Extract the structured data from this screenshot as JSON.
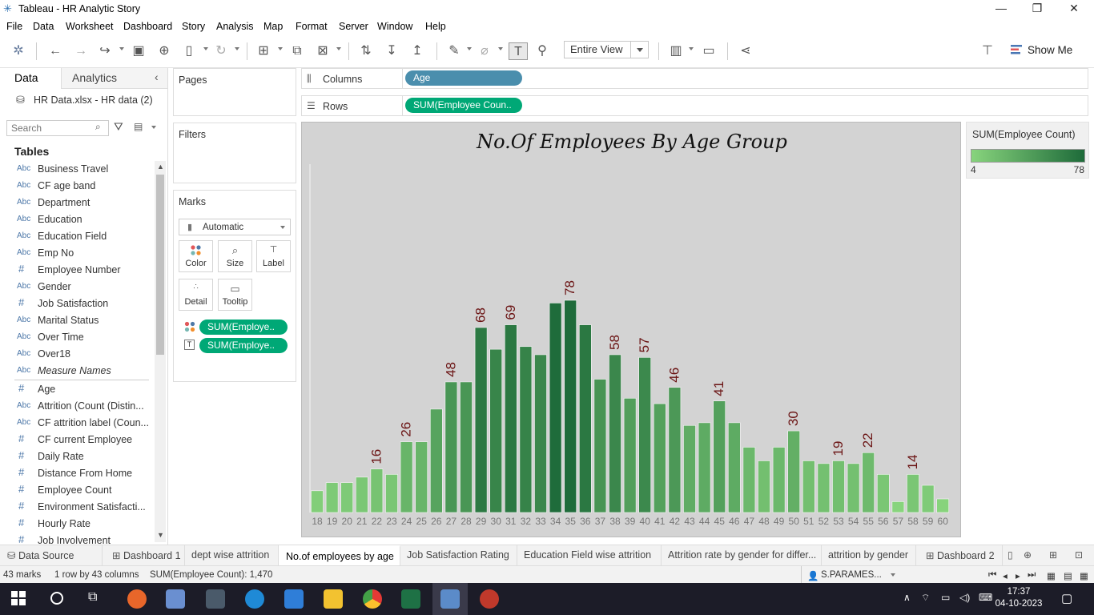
{
  "window": {
    "title": "Tableau - HR Analytic Story"
  },
  "menu": [
    "File",
    "Data",
    "Worksheet",
    "Dashboard",
    "Story",
    "Analysis",
    "Map",
    "Format",
    "Server",
    "Window",
    "Help"
  ],
  "toolbar": {
    "view_select": "Entire View",
    "show_me": "Show Me"
  },
  "data_pane": {
    "tab_data": "Data",
    "tab_analytics": "Analytics",
    "datasource": "HR Data.xlsx - HR data (2)",
    "search_placeholder": "Search",
    "tables_heading": "Tables",
    "fields": [
      {
        "type": "Abc",
        "name": "Business Travel"
      },
      {
        "type": "Abc",
        "name": "CF age band"
      },
      {
        "type": "Abc",
        "name": "Department"
      },
      {
        "type": "Abc",
        "name": "Education"
      },
      {
        "type": "Abc",
        "name": "Education Field"
      },
      {
        "type": "Abc",
        "name": "Emp No"
      },
      {
        "type": "#",
        "name": "Employee Number"
      },
      {
        "type": "Abc",
        "name": "Gender"
      },
      {
        "type": "#",
        "name": "Job Satisfaction"
      },
      {
        "type": "Abc",
        "name": "Marital Status"
      },
      {
        "type": "Abc",
        "name": "Over Time"
      },
      {
        "type": "Abc",
        "name": "Over18"
      },
      {
        "type": "Abc",
        "name": "Measure Names"
      },
      {
        "type": "#",
        "name": "Age"
      },
      {
        "type": "Abc",
        "name": "Attrition (Count (Distin..."
      },
      {
        "type": "Abc",
        "name": "CF attrition label (Coun..."
      },
      {
        "type": "#",
        "name": "CF current Employee"
      },
      {
        "type": "#",
        "name": "Daily Rate"
      },
      {
        "type": "#",
        "name": "Distance From Home"
      },
      {
        "type": "#",
        "name": "Employee Count"
      },
      {
        "type": "#",
        "name": "Environment Satisfacti..."
      },
      {
        "type": "#",
        "name": "Hourly Rate"
      },
      {
        "type": "#",
        "name": "Job Involvement"
      }
    ]
  },
  "cards": {
    "pages": "Pages",
    "filters": "Filters",
    "marks": "Marks",
    "mark_type": "Automatic",
    "buttons": [
      "Color",
      "Size",
      "Label",
      "Detail",
      "Tooltip"
    ],
    "pills": [
      "SUM(Employe..",
      "SUM(Employe.."
    ]
  },
  "shelves": {
    "columns_label": "Columns",
    "columns_pill": "Age",
    "rows_label": "Rows",
    "rows_pill": "SUM(Employee Coun.."
  },
  "legend": {
    "title": "SUM(Employee Count)",
    "min": "4",
    "max": "78",
    "color_low": "#88d47d",
    "color_high": "#1e6b3a"
  },
  "chart_data": {
    "type": "bar",
    "title": "No.Of Employees By Age Group",
    "categories": [
      "18",
      "19",
      "20",
      "21",
      "22",
      "23",
      "24",
      "25",
      "26",
      "27",
      "28",
      "29",
      "30",
      "31",
      "32",
      "33",
      "34",
      "35",
      "36",
      "37",
      "38",
      "39",
      "40",
      "41",
      "42",
      "43",
      "44",
      "45",
      "46",
      "47",
      "48",
      "49",
      "50",
      "51",
      "52",
      "53",
      "54",
      "55",
      "56",
      "57",
      "58",
      "59",
      "60"
    ],
    "values": [
      8,
      11,
      11,
      13,
      16,
      14,
      26,
      26,
      38,
      48,
      48,
      68,
      60,
      69,
      61,
      58,
      77,
      78,
      69,
      49,
      58,
      42,
      57,
      40,
      46,
      32,
      33,
      41,
      33,
      24,
      19,
      24,
      30,
      19,
      18,
      19,
      18,
      22,
      14,
      4,
      14,
      10,
      5
    ],
    "labeled": [
      "16",
      "26",
      "48",
      "68",
      "69",
      "78",
      "58",
      "57",
      "46",
      "41",
      "30",
      "19",
      "22",
      "14"
    ],
    "ylim": [
      0,
      90
    ],
    "grid": false,
    "legend": "right"
  },
  "sheet_tabs": [
    "Data Source",
    "Dashboard 1",
    "dept wise attrition",
    "No.of employees by age",
    "Job Satisfaction Rating",
    "Education Field wise attrition",
    "Attrition rate by gender for differ...",
    "attrition by gender",
    "Dashboard 2"
  ],
  "status": {
    "marks": "43 marks",
    "rows_cols": "1 row by 43 columns",
    "sum": "SUM(Employee Count): 1,470",
    "user": "S.PARAMES..."
  },
  "taskbar": {
    "time": "17:37",
    "date": "04-10-2023"
  }
}
